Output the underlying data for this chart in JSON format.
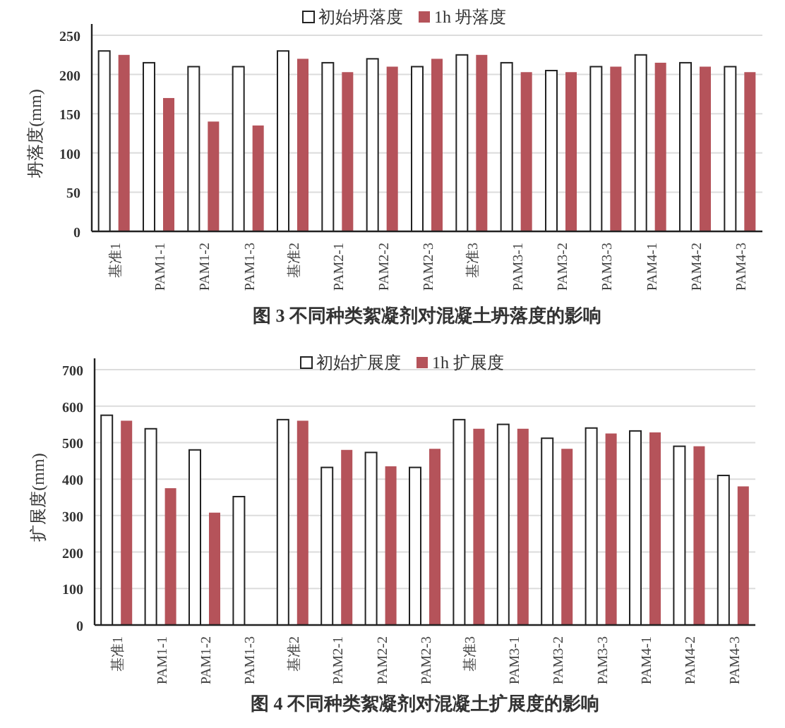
{
  "chart_data": [
    {
      "type": "bar",
      "title": "图 3   不同种类絮凝剂对混凝土坍落度的影响",
      "ylabel": "坍落度(mm)",
      "categories": [
        "基准1",
        "PAM1-1",
        "PAM1-2",
        "PAM1-3",
        "基准2",
        "PAM2-1",
        "PAM2-2",
        "PAM2-3",
        "基准3",
        "PAM3-1",
        "PAM3-2",
        "PAM3-3",
        "PAM4-1",
        "PAM4-2",
        "PAM4-3"
      ],
      "series": [
        {
          "name": "初始坍落度",
          "color": "#ffffff",
          "values": [
            230,
            215,
            210,
            210,
            230,
            215,
            220,
            210,
            225,
            215,
            205,
            210,
            225,
            215,
            210
          ]
        },
        {
          "name": "1h 坍落度",
          "color": "#b5535a",
          "values": [
            225,
            170,
            140,
            135,
            220,
            203,
            210,
            220,
            225,
            203,
            203,
            210,
            215,
            210,
            203
          ]
        }
      ],
      "ylim": [
        0,
        250
      ],
      "yticks": [
        0,
        50,
        100,
        150,
        200,
        250
      ],
      "grid": "y",
      "legend": "top"
    },
    {
      "type": "bar",
      "title": "图 4   不同种类絮凝剂对混凝土扩展度的影响",
      "ylabel": "扩展度(mm)",
      "categories": [
        "基准1",
        "PAM1-1",
        "PAM1-2",
        "PAM1-3",
        "基准2",
        "PAM2-1",
        "PAM2-2",
        "PAM2-3",
        "基准3",
        "PAM3-1",
        "PAM3-2",
        "PAM3-3",
        "PAM4-1",
        "PAM4-2",
        "PAM4-3"
      ],
      "series": [
        {
          "name": "初始扩展度",
          "color": "#ffffff",
          "values": [
            575,
            538,
            480,
            352,
            563,
            432,
            473,
            432,
            563,
            550,
            512,
            540,
            532,
            490,
            410
          ]
        },
        {
          "name": "1h 扩展度",
          "color": "#b5535a",
          "values": [
            560,
            375,
            308,
            null,
            560,
            480,
            435,
            483,
            538,
            538,
            483,
            525,
            528,
            490,
            380
          ]
        }
      ],
      "ylim": [
        0,
        700
      ],
      "yticks": [
        0,
        100,
        200,
        300,
        400,
        500,
        600,
        700
      ],
      "grid": "y",
      "legend": "top"
    }
  ]
}
